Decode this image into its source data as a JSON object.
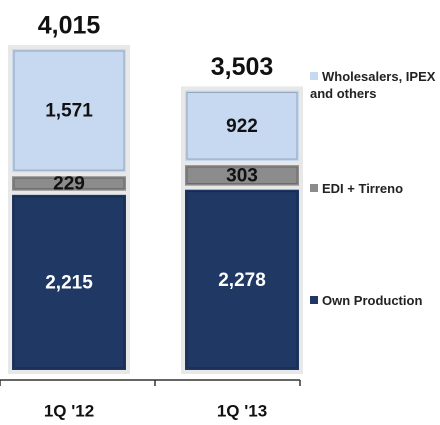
{
  "chart_data": {
    "type": "stacked_bar",
    "categories": [
      "1Q '12",
      "1Q '13"
    ],
    "series": [
      {
        "name": "Own Production",
        "color": "#1f3864",
        "values": [
          2215,
          2278
        ],
        "value_labels": [
          "2,215",
          "2,278"
        ]
      },
      {
        "name": "EDI + Tirreno",
        "color": "#8c8c8c",
        "values": [
          229,
          303
        ],
        "value_labels": [
          "229",
          "303"
        ]
      },
      {
        "name": "Wholesalers, IPEX and others",
        "color": "#c6d9f1",
        "values": [
          1571,
          922
        ],
        "value_labels": [
          "1,571",
          "922"
        ]
      }
    ],
    "totals": [
      4015,
      3503
    ],
    "total_labels": [
      "4,015",
      "3,503"
    ]
  }
}
